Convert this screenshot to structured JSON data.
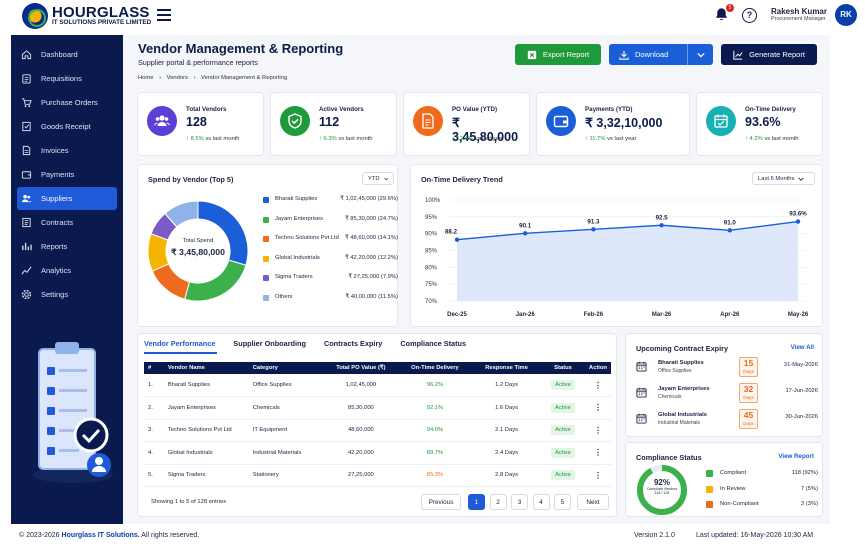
{
  "brand": {
    "title": "HOURGLASS",
    "subtitle": "IT SOLUTIONS PRIVATE LIMITED"
  },
  "header": {
    "notif_count": "5",
    "help": "?",
    "user_name": "Rakesh Kumar",
    "user_role": "Procurement Manager",
    "initials": "RK"
  },
  "sidebar": {
    "items": [
      {
        "label": "Dashboard",
        "icon": "home-icon"
      },
      {
        "label": "Requisitions",
        "icon": "clipboard-icon"
      },
      {
        "label": "Purchase Orders",
        "icon": "cart-icon"
      },
      {
        "label": "Goods Receipt",
        "icon": "receipt-icon"
      },
      {
        "label": "Invoices",
        "icon": "invoice-icon"
      },
      {
        "label": "Payments",
        "icon": "wallet-icon"
      },
      {
        "label": "Suppliers",
        "icon": "users-icon"
      },
      {
        "label": "Contracts",
        "icon": "contract-icon"
      },
      {
        "label": "Reports",
        "icon": "report-icon"
      },
      {
        "label": "Analytics",
        "icon": "analytics-icon"
      },
      {
        "label": "Settings",
        "icon": "gear-icon"
      }
    ],
    "active_index": 6
  },
  "page": {
    "title": "Vendor Management & Reporting",
    "subtitle": "Supplier portal & performance reports",
    "breadcrumb": [
      "Home",
      "Vendors",
      "Vendor Management & Reporting"
    ],
    "export_label": "Export Report",
    "download_label": "Download",
    "generate_label": "Generate Report"
  },
  "kpis": [
    {
      "label": "Total Vendors",
      "value": "128",
      "change": "↑ 8.5%",
      "suffix": "vs last month",
      "color": "#5b3fd6"
    },
    {
      "label": "Active Vendors",
      "value": "112",
      "change": "↑ 6.3%",
      "suffix": "vs last month",
      "color": "#1f9a3a"
    },
    {
      "label": "PO Value (YTD)",
      "value": "₹ 3,45,80,000",
      "change": "↑ 12.4%",
      "suffix": "vs last year",
      "color": "#f06a1d"
    },
    {
      "label": "Payments (YTD)",
      "value": "₹ 3,32,10,000",
      "change": "↑ 11.7%",
      "suffix": "vs last year",
      "color": "#1a5fd8"
    },
    {
      "label": "On-Time Delivery",
      "value": "93.6%",
      "change": "↑ 4.2%",
      "suffix": "vs last month",
      "color": "#18b0b0"
    }
  ],
  "spend": {
    "title": "Spend by Vendor (Top 5)",
    "filter": "YTD",
    "center_label": "Total Spend",
    "center_value": "₹ 3,45,80,000",
    "legend": [
      {
        "name": "Bharati Supplies",
        "value": "₹ 1,02,45,000 (29.6%)",
        "color": "#1a5fd8"
      },
      {
        "name": "Jayam Enterprises",
        "value": "₹ 85,30,000 (24.7%)",
        "color": "#3cb04a"
      },
      {
        "name": "Techno Solutions Pvt Ltd",
        "value": "₹ 48,60,000 (14.1%)",
        "color": "#f06a1d"
      },
      {
        "name": "Global Industrials",
        "value": "₹ 42,20,000 (12.2%)",
        "color": "#f5b400"
      },
      {
        "name": "Sigma Traders",
        "value": "₹ 27,25,000 (7.9%)",
        "color": "#7a5bc8"
      },
      {
        "name": "Others",
        "value": "₹ 40,00,000 (11.5%)",
        "color": "#8fb3e8"
      }
    ]
  },
  "chart_data": [
    {
      "type": "pie",
      "title": "Spend by Vendor (Top 5)",
      "categories": [
        "Bharati Supplies",
        "Jayam Enterprises",
        "Techno Solutions Pvt Ltd",
        "Global Industrials",
        "Sigma Traders",
        "Others"
      ],
      "values": [
        29.6,
        24.7,
        14.1,
        12.2,
        7.9,
        11.5
      ]
    },
    {
      "type": "line",
      "title": "On-Time Delivery Trend",
      "filter": "Last 6 Months",
      "categories": [
        "Dec-25",
        "Jan-26",
        "Feb-26",
        "Mar-26",
        "Apr-26",
        "May-26"
      ],
      "values": [
        88.2,
        90.1,
        91.3,
        92.5,
        91.0,
        93.6
      ],
      "labels": [
        "88.2",
        "90.1",
        "91.3",
        "92.5",
        "91.0",
        "93.6%"
      ],
      "yticks": [
        "100%",
        "95%",
        "90%",
        "85%",
        "80%",
        "75%",
        "70%"
      ],
      "ylim": [
        70,
        100
      ]
    }
  ],
  "table": {
    "tabs": [
      "Vendor Performance",
      "Supplier Onboarding",
      "Contracts Expiry",
      "Compliance Status"
    ],
    "headers": [
      "#",
      "Vendor Name",
      "Category",
      "Total PO Value (₹)",
      "On-Time Delivery",
      "Response Time",
      "Status",
      "Action"
    ],
    "rows": [
      {
        "n": "1.",
        "name": "Bharati Supplies",
        "cat": "Office Supplies",
        "po": "1,02,45,000",
        "otd": "96.2%",
        "otd_color": "#1f9a3a",
        "resp": "1.2 Days",
        "status": "Active"
      },
      {
        "n": "2.",
        "name": "Jayam Enterprises",
        "cat": "Chemicals",
        "po": "85,30,000",
        "otd": "92.1%",
        "otd_color": "#1f9a3a",
        "resp": "1.6 Days",
        "status": "Active"
      },
      {
        "n": "3.",
        "name": "Techno Solutions Pvt Ltd",
        "cat": "IT Equipment",
        "po": "48,60,000",
        "otd": "94.0%",
        "otd_color": "#1f9a3a",
        "resp": "2.1 Days",
        "status": "Active"
      },
      {
        "n": "4.",
        "name": "Global Industrials",
        "cat": "Industrial Materials",
        "po": "42,20,000",
        "otd": "89.7%",
        "otd_color": "#1f9a3a",
        "resp": "2.4 Days",
        "status": "Active"
      },
      {
        "n": "5.",
        "name": "Sigma Traders",
        "cat": "Stationery",
        "po": "27,25,000",
        "otd": "85.3%",
        "otd_color": "#f06a1d",
        "resp": "2.8 Days",
        "status": "Active"
      }
    ],
    "showing": "Showing 1 to 5 of 128 entries",
    "prev": "Previous",
    "pages": [
      "1",
      "2",
      "3",
      "4",
      "5"
    ],
    "next": "Next"
  },
  "contracts": {
    "title": "Upcoming Contract Expiry",
    "view_all": "View All",
    "items": [
      {
        "name": "Bharati Supplies",
        "cat": "Office Supplies",
        "days": "15",
        "unit": "Days",
        "date": "31-May-2026"
      },
      {
        "name": "Jayam Enterprises",
        "cat": "Chemicals",
        "days": "32",
        "unit": "Days",
        "date": "17-Jun-2026"
      },
      {
        "name": "Global Industrials",
        "cat": "Industrial Materials",
        "days": "45",
        "unit": "Days",
        "date": "30-Jun-2026"
      }
    ]
  },
  "compliance": {
    "title": "Compliance Status",
    "view_report": "View Report",
    "percent": "92%",
    "sub1": "Compliant Vendors",
    "sub2": "118 / 128",
    "fraction": 0.92,
    "items": [
      {
        "name": "Compliant",
        "value": "118 (92%)",
        "color": "#3cb04a"
      },
      {
        "name": "In Review",
        "value": "7 (5%)",
        "color": "#f5b400"
      },
      {
        "name": "Non-Compliant",
        "value": "3 (3%)",
        "color": "#f06a1d"
      }
    ]
  },
  "footer": {
    "copyright": "© 2023-2026 ",
    "company": "Hourglass IT Solutions.",
    "rights": " All rights reserved.",
    "version": "Version 2.1.0",
    "updated": "Last updated: 16-May-2026 10:30 AM"
  }
}
